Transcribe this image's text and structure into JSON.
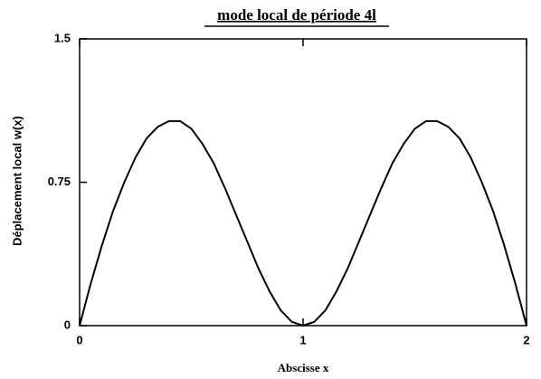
{
  "chart_data": {
    "type": "line",
    "title": "mode local de période 4l",
    "xlabel": "Abscisse   x",
    "ylabel": "Déplacement   local   w(x)",
    "xlim": [
      0,
      2
    ],
    "xticks": [
      0,
      1,
      2
    ],
    "ylim": [
      0,
      1.5
    ],
    "yticks": [
      0,
      0.75,
      1.5
    ],
    "x": [
      0,
      0.05,
      0.1,
      0.15,
      0.2,
      0.25,
      0.3,
      0.35,
      0.4,
      0.45,
      0.5,
      0.55,
      0.6,
      0.65,
      0.7,
      0.75,
      0.8,
      0.85,
      0.9,
      0.95,
      1,
      1.05,
      1.1,
      1.15,
      1.2,
      1.25,
      1.3,
      1.35,
      1.4,
      1.45,
      1.5,
      1.55,
      1.6,
      1.65,
      1.7,
      1.75,
      1.8,
      1.85,
      1.9,
      1.95,
      2
    ],
    "series": [
      {
        "name": "w(x)",
        "color": "#000000",
        "values": [
          0,
          0.22,
          0.42,
          0.6,
          0.75,
          0.88,
          0.98,
          1.04,
          1.07,
          1.07,
          1.03,
          0.95,
          0.85,
          0.72,
          0.58,
          0.44,
          0.3,
          0.18,
          0.08,
          0.02,
          0,
          0.02,
          0.08,
          0.18,
          0.3,
          0.44,
          0.58,
          0.72,
          0.85,
          0.95,
          1.03,
          1.07,
          1.07,
          1.04,
          0.98,
          0.88,
          0.75,
          0.6,
          0.42,
          0.22,
          0
        ]
      }
    ]
  }
}
